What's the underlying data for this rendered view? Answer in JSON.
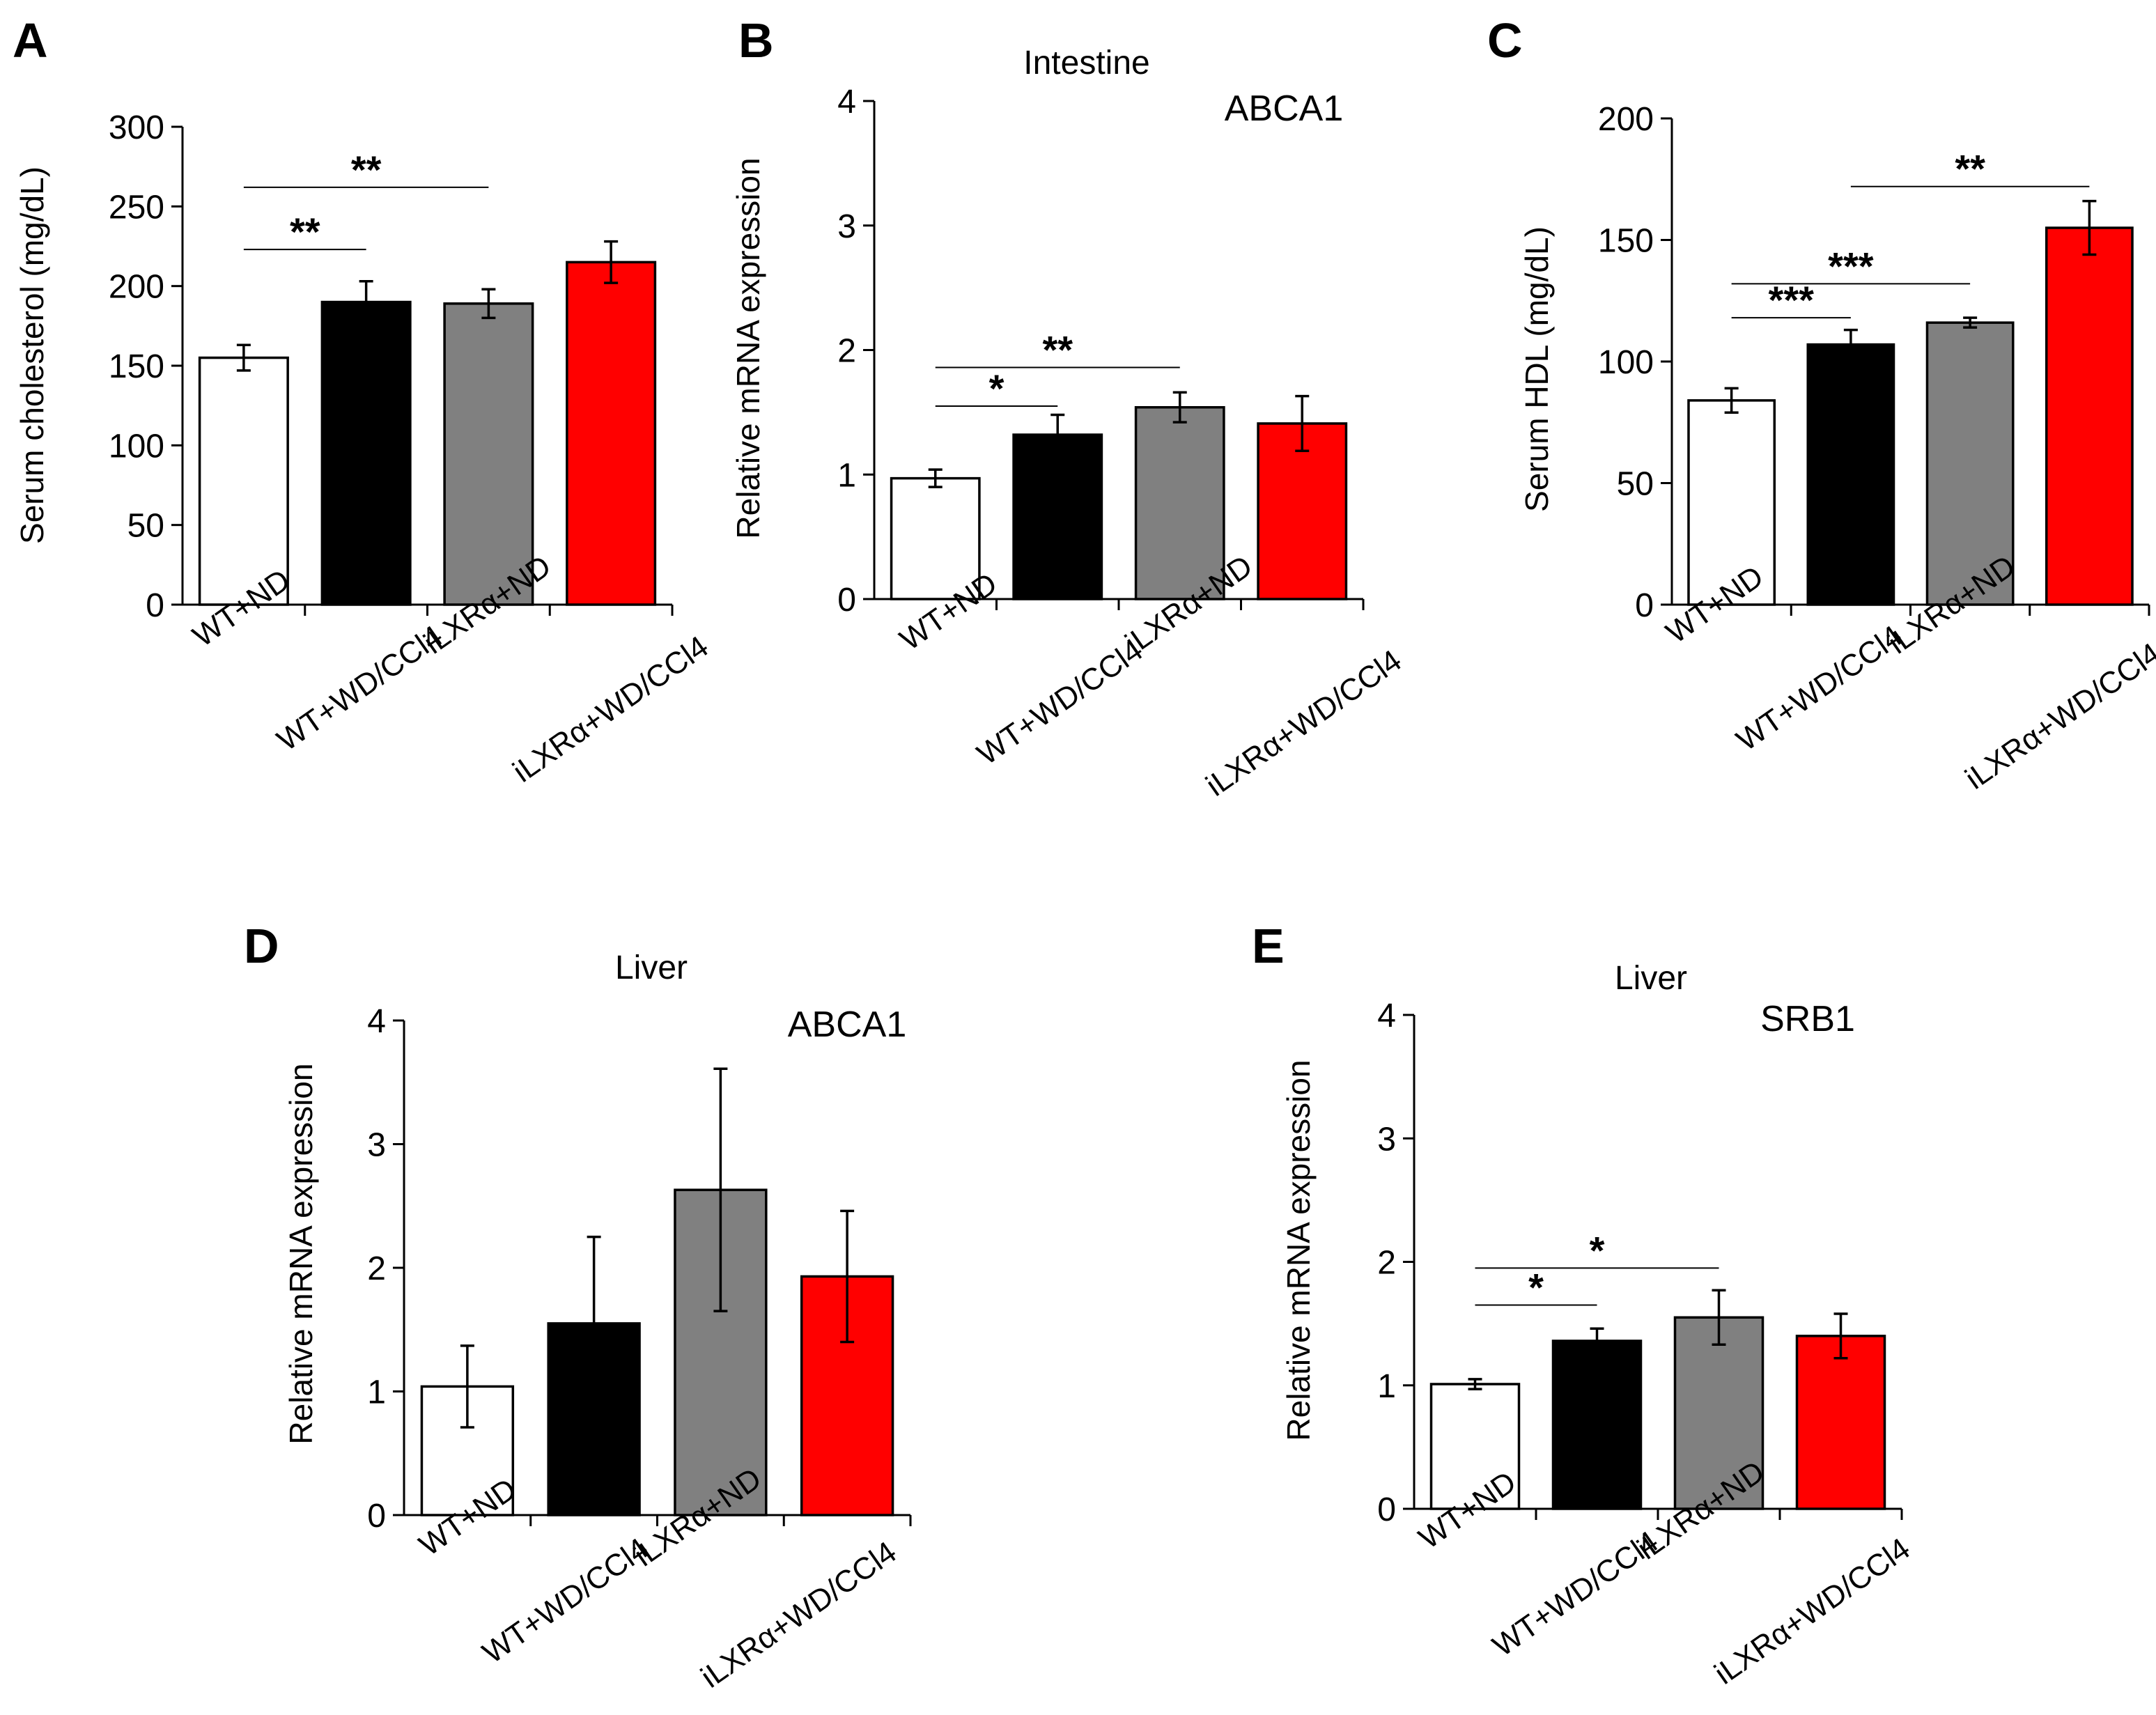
{
  "colors": {
    "bars": [
      "#ffffff",
      "#000000",
      "#808080",
      "#ff0000"
    ],
    "axis": "#000000"
  },
  "chart_data": [
    {
      "panel": "A",
      "type": "bar",
      "tissue": "",
      "gene": "",
      "ylabel": "Serum cholesterol (mg/dL)",
      "ylim": [
        0,
        300
      ],
      "yticks": [
        "0",
        "50",
        "100",
        "150",
        "200",
        "250",
        "300"
      ],
      "categories": [
        "WT+ND",
        "WT+WD/CCl4",
        "iLXRα+ND",
        "iLXRα+WD/CCl4"
      ],
      "values": [
        155,
        190,
        189,
        215
      ],
      "errors": [
        8,
        13,
        9,
        13
      ],
      "significance": [
        {
          "from": 0,
          "to": 1,
          "label": "**",
          "y": 223
        },
        {
          "from": 0,
          "to": 2,
          "label": "**",
          "y": 262
        }
      ]
    },
    {
      "panel": "B",
      "type": "bar",
      "tissue": "Intestine",
      "gene": "ABCA1",
      "ylabel": "Relative mRNA expression",
      "ylim": [
        0,
        4
      ],
      "yticks": [
        "0",
        "1",
        "2",
        "3",
        "4"
      ],
      "categories": [
        "WT+ND",
        "WT+WD/CCl4",
        "iLXRα+ND",
        "iLXRα+WD/CCl4"
      ],
      "values": [
        0.97,
        1.32,
        1.54,
        1.41
      ],
      "errors": [
        0.07,
        0.16,
        0.12,
        0.22
      ],
      "significance": [
        {
          "from": 0,
          "to": 1,
          "label": "*",
          "y": 1.55
        },
        {
          "from": 0,
          "to": 2,
          "label": "**",
          "y": 1.86
        }
      ]
    },
    {
      "panel": "C",
      "type": "bar",
      "tissue": "",
      "gene": "",
      "ylabel": "Serum HDL (mg/dL)",
      "ylim": [
        0,
        200
      ],
      "yticks": [
        "0",
        "50",
        "100",
        "150",
        "200"
      ],
      "categories": [
        "WT+ND",
        "WT+WD/CCl4",
        "iLXRα+ND",
        "iLXRα+WD/CCl4"
      ],
      "values": [
        84,
        107,
        116,
        155
      ],
      "errors": [
        5,
        6,
        2,
        11
      ],
      "significance": [
        {
          "from": 0,
          "to": 1,
          "label": "***",
          "y": 118
        },
        {
          "from": 0,
          "to": 2,
          "label": "***",
          "y": 132
        },
        {
          "from": 1,
          "to": 3,
          "label": "**",
          "y": 172
        }
      ]
    },
    {
      "panel": "D",
      "type": "bar",
      "tissue": "Liver",
      "gene": "ABCA1",
      "ylabel": "Relative mRNA expression",
      "ylim": [
        0,
        4
      ],
      "yticks": [
        "0",
        "1",
        "2",
        "3",
        "4"
      ],
      "categories": [
        "WT+ND",
        "WT+WD/CCl4",
        "iLXRα+ND",
        "iLXRα+WD/CCl4"
      ],
      "values": [
        1.04,
        1.55,
        2.63,
        1.93
      ],
      "errors": [
        0.33,
        0.7,
        0.98,
        0.53
      ],
      "significance": []
    },
    {
      "panel": "E",
      "type": "bar",
      "tissue": "Liver",
      "gene": "SRB1",
      "ylabel": "Relative mRNA expression",
      "ylim": [
        0,
        4
      ],
      "yticks": [
        "0",
        "1",
        "2",
        "3",
        "4"
      ],
      "categories": [
        "WT+ND",
        "WT+WD/CCl4",
        "iLXRα+ND",
        "iLXRα+WD/CCl4"
      ],
      "values": [
        1.01,
        1.36,
        1.55,
        1.4
      ],
      "errors": [
        0.04,
        0.1,
        0.22,
        0.18
      ],
      "significance": [
        {
          "from": 0,
          "to": 1,
          "label": "*",
          "y": 1.65
        },
        {
          "from": 0,
          "to": 2,
          "label": "*",
          "y": 1.95
        }
      ]
    }
  ]
}
